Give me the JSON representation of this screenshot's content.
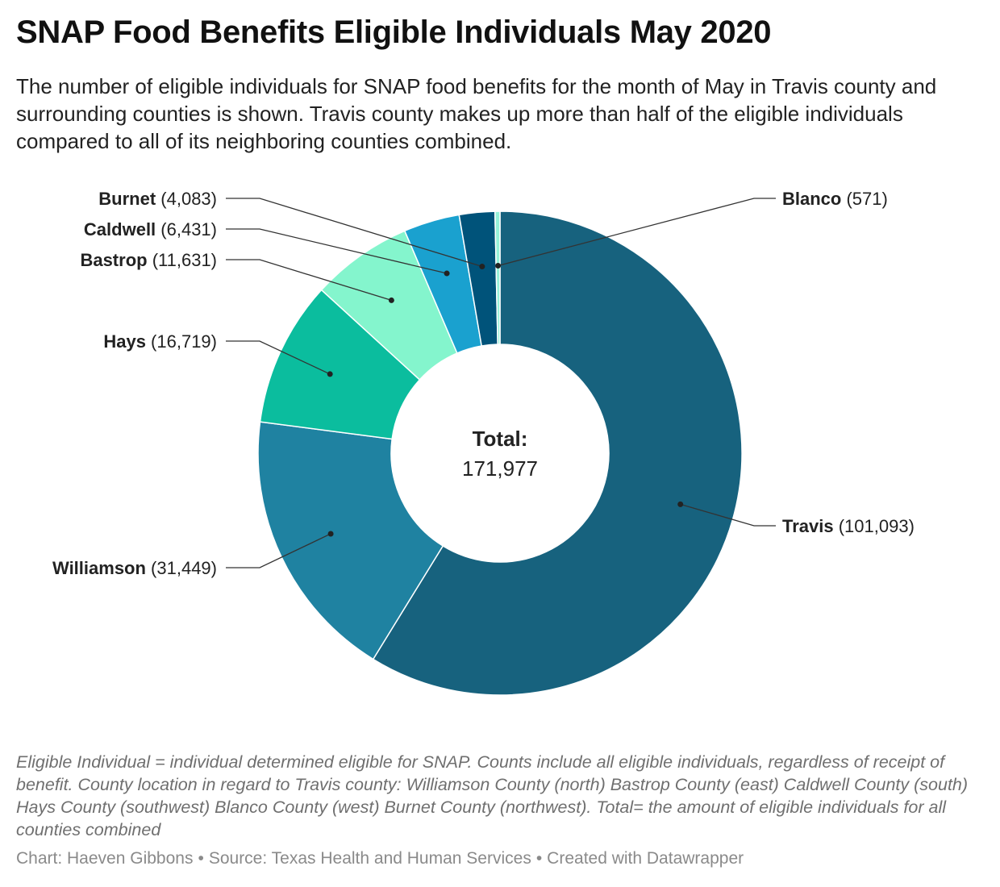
{
  "header": {
    "title": "SNAP Food Benefits Eligible Individuals May 2020",
    "subtitle": "The number of eligible individuals for SNAP food benefits for the month of May in Travis county and surrounding counties is shown. Travis county makes up more than half of the eligible individuals compared to all of its neighboring counties combined."
  },
  "chart_data": {
    "type": "pie",
    "variant": "donut",
    "categories": [
      "Travis",
      "Williamson",
      "Hays",
      "Bastrop",
      "Caldwell",
      "Burnet",
      "Blanco"
    ],
    "values": [
      101093,
      31449,
      16719,
      11631,
      6431,
      4083,
      571
    ],
    "value_labels": [
      "101,093",
      "31,449",
      "16,719",
      "11,631",
      "6,431",
      "4,083",
      "571"
    ],
    "colors": [
      "#17627e",
      "#1f82a1",
      "#0bbd9e",
      "#84f5cd",
      "#1aa1cf",
      "#00537a",
      "#96f2d9"
    ],
    "center_label": "Total:",
    "center_value": "171,977"
  },
  "footer": {
    "notes": "Eligible Individual = individual determined eligible for SNAP. Counts include all eligible individuals, regardless of receipt of benefit. County location in regard to Travis county: Williamson County (north) Bastrop County (east) Caldwell County (south) Hays County (southwest) Blanco County (west) Burnet County (northwest). Total= the amount of eligible individuals for all counties combined",
    "credit": "Chart: Haeven Gibbons",
    "source": "Source: Texas Health and Human Services",
    "tool": "Created with Datawrapper",
    "separator": "•"
  }
}
